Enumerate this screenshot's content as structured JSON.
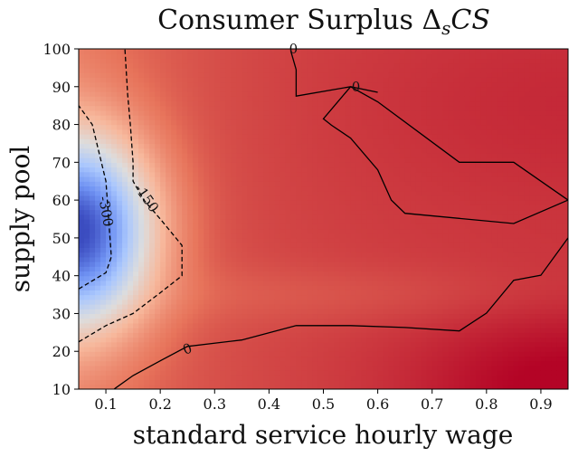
{
  "chart_data": {
    "type": "heatmap",
    "title": "Consumer Surplus Δ",
    "title_sub": "s",
    "title_tail": "CS",
    "xlabel": "standard service hourly wage",
    "ylabel": "supply pool",
    "xlim": [
      0.05,
      0.95
    ],
    "ylim": [
      10,
      100
    ],
    "x_ticks": [
      0.1,
      0.2,
      0.3,
      0.4,
      0.5,
      0.6,
      0.7,
      0.8,
      0.9
    ],
    "x_tick_labels": [
      "0.1",
      "0.2",
      "0.3",
      "0.4",
      "0.5",
      "0.6",
      "0.7",
      "0.8",
      "0.9"
    ],
    "y_ticks": [
      10,
      20,
      30,
      40,
      50,
      60,
      70,
      80,
      90,
      100
    ],
    "y_tick_labels": [
      "10",
      "20",
      "30",
      "40",
      "50",
      "60",
      "70",
      "80",
      "90",
      "100"
    ],
    "colormap": "coolwarm",
    "colormap_stops": [
      "#3b4cc0",
      "#6f92f3",
      "#aac7fd",
      "#dddddd",
      "#f7b89c",
      "#e7745b",
      "#b40426"
    ],
    "color_range": [
      -550,
      120
    ],
    "grid": false,
    "contours": [
      {
        "level": 0,
        "label": "0",
        "style": "solid",
        "segments": [
          [
            [
              0.115,
              10
            ],
            [
              0.15,
              13.6
            ],
            [
              0.2,
              17.5
            ],
            [
              0.25,
              21.3
            ],
            [
              0.35,
              23
            ],
            [
              0.45,
              26.8
            ],
            [
              0.55,
              26.8
            ],
            [
              0.65,
              26.3
            ],
            [
              0.75,
              25.4
            ],
            [
              0.8,
              30.1
            ],
            [
              0.85,
              38.8
            ],
            [
              0.9,
              40.1
            ],
            [
              0.95,
              50
            ]
          ],
          [
            [
              0.44,
              99.5
            ],
            [
              0.45,
              94.5
            ],
            [
              0.45,
              87.5
            ],
            [
              0.55,
              90
            ],
            [
              0.6,
              88.5
            ]
          ],
          [
            [
              0.55,
              90
            ],
            [
              0.5,
              81.5
            ],
            [
              0.515,
              79.8
            ],
            [
              0.55,
              76.4
            ],
            [
              0.6,
              68
            ],
            [
              0.625,
              60
            ],
            [
              0.65,
              56.5
            ],
            [
              0.85,
              53.8
            ],
            [
              0.95,
              60
            ],
            [
              0.85,
              70
            ],
            [
              0.75,
              70
            ],
            [
              0.6,
              86
            ],
            [
              0.55,
              90
            ]
          ]
        ],
        "label_points": [
          [
            0.25,
            20.6
          ],
          [
            0.445,
            100
          ],
          [
            0.56,
            90
          ]
        ]
      },
      {
        "level": -150,
        "label": "-150",
        "style": "dashed",
        "segments": [
          [
            [
              0.05,
              22.5
            ],
            [
              0.1,
              26.8
            ],
            [
              0.15,
              30
            ],
            [
              0.2,
              35.5
            ],
            [
              0.24,
              40
            ],
            [
              0.24,
              48
            ],
            [
              0.2,
              55
            ],
            [
              0.17,
              60
            ],
            [
              0.15,
              65
            ],
            [
              0.15,
              70
            ],
            [
              0.145,
              80
            ],
            [
              0.14,
              88
            ],
            [
              0.135,
              100
            ]
          ]
        ],
        "label_points": [
          [
            0.175,
            60.5
          ]
        ]
      },
      {
        "level": -300,
        "label": "-300",
        "style": "dashed",
        "segments": [
          [
            [
              0.05,
              36.5
            ],
            [
              0.1,
              40.8
            ],
            [
              0.11,
              45
            ],
            [
              0.105,
              55
            ],
            [
              0.1,
              65
            ],
            [
              0.075,
              80
            ],
            [
              0.05,
              85
            ]
          ]
        ],
        "label_points": [
          [
            0.1,
            57
          ]
        ]
      }
    ],
    "field_model": {
      "blue_center": [
        0.05,
        52
      ],
      "description": "smooth surplus field: strongly negative near low wage / mid pool, positive elsewhere, strongest at high wage / low pool"
    }
  }
}
